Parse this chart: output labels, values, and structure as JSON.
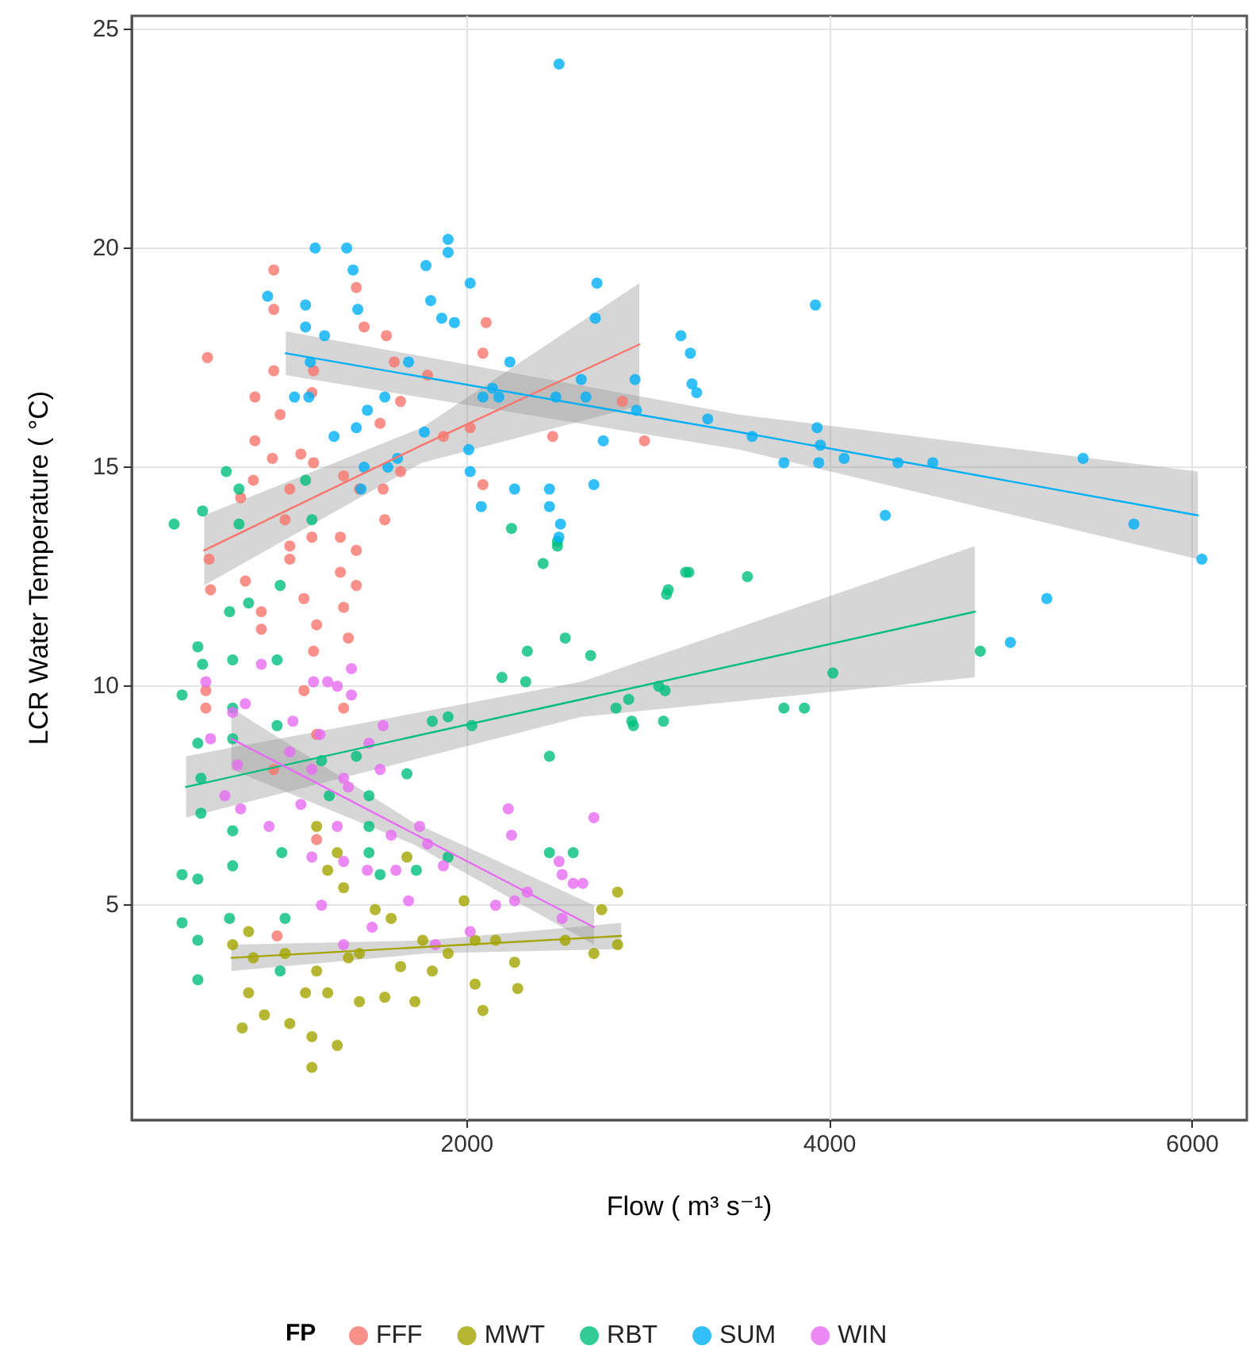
{
  "chart_data": {
    "type": "scatter",
    "xlabel": "Flow ( m³ s⁻¹)",
    "ylabel": "LCR Water Temperature ( °C)",
    "legend_title": "FP",
    "legend": "bottom",
    "grid": true,
    "marker": "circle",
    "xlim": [
      150,
      6300
    ],
    "ylim": [
      0.1,
      25.3
    ],
    "xticks": [
      2000,
      4000,
      6000
    ],
    "yticks": [
      5,
      10,
      15,
      20,
      25
    ],
    "series": [
      {
        "name": "FFF",
        "color": "#f8766d",
        "x": [
          934,
          568,
          830,
          969,
          830,
          926,
          821,
          751,
          1083,
          1153,
          1022,
          996,
          1144,
          1022,
          1301,
          1389,
          1319,
          1406,
          1546,
          1537,
          1633,
          1633,
          1520,
          1598,
          1555,
          1432,
          1389,
          1153,
          1144,
          934,
          934,
          1782,
          1869,
          2017,
          2087,
          2105,
          2087,
          2472,
          2856,
          2978,
          1301,
          1022,
          585,
          577,
          777,
          865,
          865,
          1100,
          1170,
          1153,
          1319,
          1345,
          1319,
          1170,
          1100,
          559,
          559,
          934,
          1170,
          1389,
          952
        ],
        "values": [
          19.5,
          17.5,
          16.6,
          16.2,
          15.6,
          15.2,
          14.7,
          14.3,
          15.3,
          15.1,
          14.5,
          13.8,
          13.4,
          13.2,
          13.4,
          13.1,
          14.8,
          14.5,
          13.8,
          14.5,
          14.9,
          16.5,
          16.0,
          17.4,
          18.0,
          18.2,
          19.1,
          17.2,
          16.7,
          18.6,
          17.2,
          17.1,
          15.7,
          15.9,
          17.6,
          18.3,
          14.6,
          15.7,
          16.5,
          15.6,
          12.6,
          12.9,
          12.2,
          12.9,
          12.4,
          11.7,
          11.3,
          12.0,
          11.4,
          10.8,
          11.8,
          11.1,
          9.5,
          8.9,
          9.9,
          9.9,
          9.5,
          8.1,
          6.5,
          12.3,
          4.3
        ]
      },
      {
        "name": "MWT",
        "color": "#a3a500",
        "x": [
          707,
          795,
          821,
          760,
          882,
          795,
          1022,
          1144,
          1144,
          1284,
          1170,
          1231,
          1284,
          1319,
          1170,
          1109,
          1231,
          1345,
          1406,
          1493,
          1581,
          1546,
          1633,
          1712,
          1755,
          1808,
          1895,
          1983,
          2044,
          2044,
          2087,
          2157,
          2262,
          2279,
          2541,
          2699,
          2742,
          2830,
          2830,
          1406,
          996,
          1668
        ],
        "values": [
          4.1,
          4.4,
          3.8,
          2.2,
          2.5,
          3.0,
          2.3,
          2.0,
          1.3,
          1.8,
          6.8,
          5.8,
          6.2,
          5.4,
          3.5,
          3.0,
          3.0,
          3.8,
          2.8,
          4.9,
          4.7,
          2.9,
          3.6,
          2.8,
          4.2,
          3.5,
          3.9,
          5.1,
          4.2,
          3.2,
          2.6,
          4.2,
          3.7,
          3.1,
          4.2,
          3.9,
          4.9,
          5.3,
          4.1,
          3.9,
          3.9,
          6.1
        ]
      },
      {
        "name": "RBT",
        "color": "#00bf7d",
        "x": [
          428,
          515,
          541,
          515,
          532,
          532,
          428,
          515,
          428,
          515,
          515,
          690,
          707,
          707,
          707,
          707,
          707,
          690,
          795,
          969,
          952,
          952,
          978,
          996,
          969,
          1197,
          1240,
          1389,
          1459,
          1459,
          1459,
          1520,
          1668,
          1720,
          1808,
          1895,
          2026,
          1895,
          2192,
          2323,
          2332,
          2541,
          2681,
          2419,
          2498,
          2454,
          2454,
          2585,
          2891,
          3092,
          3109,
          2917,
          3205,
          672,
          742,
          541,
          742,
          1109,
          1144,
          2245,
          2498,
          3100,
          3223,
          3546,
          2821,
          2908,
          3083,
          3057,
          3747,
          3860,
          4017,
          4830,
          384
        ],
        "values": [
          9.8,
          10.9,
          10.5,
          8.7,
          7.9,
          7.1,
          5.7,
          5.6,
          4.6,
          4.2,
          3.3,
          11.7,
          10.6,
          9.5,
          8.8,
          6.7,
          5.9,
          4.7,
          11.9,
          12.3,
          10.6,
          9.1,
          6.2,
          4.7,
          3.5,
          8.3,
          7.5,
          8.4,
          7.5,
          6.2,
          6.8,
          5.7,
          8.0,
          5.8,
          9.2,
          9.3,
          9.1,
          6.1,
          10.2,
          10.1,
          10.8,
          11.1,
          10.7,
          12.8,
          13.2,
          8.4,
          6.2,
          6.2,
          9.7,
          9.9,
          12.2,
          9.1,
          12.6,
          14.9,
          14.5,
          14.0,
          13.7,
          14.7,
          13.8,
          13.6,
          13.3,
          12.1,
          12.6,
          12.5,
          9.5,
          9.2,
          9.2,
          10.0,
          9.5,
          9.5,
          10.3,
          10.8,
          13.7
        ]
      },
      {
        "name": "SUM",
        "color": "#00b0f6",
        "x": [
          2507,
          1162,
          1336,
          1371,
          1895,
          1895,
          1773,
          900,
          1109,
          1109,
          1214,
          1397,
          1799,
          1860,
          1930,
          2017,
          2716,
          2707,
          3179,
          3231,
          3240,
          3266,
          2926,
          2934,
          3327,
          3572,
          3747,
          3939,
          3930,
          3921,
          3948,
          4079,
          4306,
          4376,
          4568,
          5197,
          4996,
          5397,
          5677,
          6052,
          1450,
          1546,
          1677,
          1135,
          1127,
          1389,
          1563,
          1432,
          1415,
          2087,
          2140,
          2175,
          2236,
          2629,
          2655,
          2489,
          2454,
          2454,
          2515,
          2506,
          2262,
          2078,
          2009,
          1764,
          1616,
          2751,
          2699,
          2017,
          1048,
          1266
        ],
        "values": [
          24.2,
          20.0,
          20.0,
          19.5,
          20.2,
          19.9,
          19.6,
          18.9,
          18.7,
          18.2,
          18.0,
          18.6,
          18.8,
          18.4,
          18.3,
          19.2,
          19.2,
          18.4,
          18.0,
          17.6,
          16.9,
          16.7,
          17.0,
          16.3,
          16.1,
          15.7,
          15.1,
          15.1,
          15.9,
          18.7,
          15.5,
          15.2,
          13.9,
          15.1,
          15.1,
          12.0,
          11.0,
          15.2,
          13.7,
          12.9,
          16.3,
          16.6,
          17.4,
          17.4,
          16.6,
          15.9,
          15.0,
          15.0,
          14.5,
          16.6,
          16.8,
          16.6,
          17.4,
          17.0,
          16.6,
          16.6,
          14.5,
          14.1,
          13.7,
          13.4,
          14.5,
          14.1,
          15.4,
          15.8,
          15.2,
          15.6,
          14.6,
          14.9,
          16.6,
          15.7
        ]
      },
      {
        "name": "WIN",
        "color": "#e76bf3",
        "x": [
          559,
          585,
          707,
          777,
          865,
          734,
          664,
          751,
          908,
          1022,
          1039,
          1083,
          1153,
          1231,
          1284,
          1362,
          1362,
          1144,
          1188,
          1319,
          1345,
          1459,
          1537,
          1520,
          1284,
          1144,
          1319,
          1450,
          1607,
          1581,
          1738,
          1677,
          1782,
          1869,
          1476,
          1319,
          1197,
          1825,
          2017,
          2157,
          2262,
          2332,
          2227,
          2245,
          2507,
          2524,
          2585,
          2638,
          2699,
          2524
        ],
        "values": [
          10.1,
          8.8,
          9.4,
          9.6,
          10.5,
          8.2,
          7.5,
          7.2,
          6.8,
          8.5,
          9.2,
          7.3,
          10.1,
          10.1,
          10.0,
          10.4,
          9.8,
          8.1,
          8.9,
          7.9,
          7.7,
          8.7,
          9.1,
          8.1,
          6.8,
          6.1,
          6.0,
          5.8,
          5.8,
          6.6,
          6.8,
          5.1,
          6.4,
          5.9,
          4.5,
          4.1,
          5.0,
          4.1,
          4.4,
          5.0,
          5.1,
          5.3,
          7.2,
          6.6,
          6.0,
          5.7,
          5.5,
          5.5,
          7.0,
          4.7
        ]
      },
      {
        "type": "line",
        "marker": "none",
        "color": "#f8766d",
        "x": [
          550,
          1750,
          2950
        ],
        "values": [
          13.1,
          15.5,
          17.8
        ],
        "lower": [
          12.3,
          15.1,
          16.4
        ],
        "upper": [
          13.9,
          15.9,
          19.2
        ]
      },
      {
        "type": "line",
        "marker": "none",
        "color": "#a3a500",
        "x": [
          700,
          1780,
          2850
        ],
        "values": [
          3.8,
          4.05,
          4.3
        ],
        "lower": [
          3.5,
          3.9,
          4.0
        ],
        "upper": [
          4.1,
          4.2,
          4.6
        ]
      },
      {
        "type": "line",
        "marker": "none",
        "color": "#00bf7d",
        "x": [
          450,
          2630,
          4800
        ],
        "values": [
          7.7,
          9.7,
          11.7
        ],
        "lower": [
          7.0,
          9.3,
          10.2
        ],
        "upper": [
          8.4,
          10.1,
          13.2
        ]
      },
      {
        "type": "line",
        "marker": "none",
        "color": "#00b0f6",
        "x": [
          1000,
          3500,
          6030
        ],
        "values": [
          17.6,
          15.8,
          13.9
        ],
        "lower": [
          17.1,
          15.4,
          12.9
        ],
        "upper": [
          18.1,
          16.2,
          14.9
        ]
      },
      {
        "type": "line",
        "marker": "none",
        "color": "#e76bf3",
        "x": [
          700,
          1700,
          2700
        ],
        "values": [
          8.8,
          6.65,
          4.5
        ],
        "lower": [
          8.1,
          6.4,
          4.1
        ],
        "upper": [
          9.5,
          6.9,
          5.0
        ]
      }
    ]
  }
}
